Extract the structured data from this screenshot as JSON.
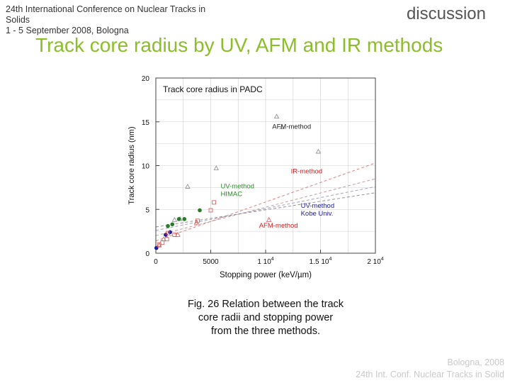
{
  "header": {
    "conference_lines": [
      "24th International Conference on Nuclear Tracks in",
      "Solids",
      "1 - 5 September 2008, Bologna"
    ],
    "section": "discussion",
    "title": "Track core radius by UV, AFM and IR methods"
  },
  "chart_data": {
    "type": "scatter",
    "title": "Track core radius in PADC",
    "xlabel": "Stopping power (keV/µm)",
    "ylabel": "Track core radius (nm)",
    "xlim": [
      0,
      20000
    ],
    "ylim": [
      0,
      20
    ],
    "x_ticks": [
      {
        "value": 0,
        "label": "0"
      },
      {
        "value": 5000,
        "label": "5000"
      },
      {
        "value": 10000,
        "label": "1 10",
        "exp": "4"
      },
      {
        "value": 15000,
        "label": "1.5 10",
        "exp": "4"
      },
      {
        "value": 20000,
        "label": "2 10",
        "exp": "4"
      }
    ],
    "y_ticks": [
      0,
      5,
      10,
      15,
      20
    ],
    "grid": true,
    "annotations": [
      {
        "text": "AFM-method",
        "x": 10600,
        "y": 14.2,
        "color": "#222222"
      },
      {
        "text": "IR-method",
        "x": 12300,
        "y": 9.1,
        "color": "#cc2222"
      },
      {
        "text": "UV-method",
        "x": 5900,
        "y": 7.4,
        "color": "#2a8a2a"
      },
      {
        "text": "HIMAC",
        "x": 5900,
        "y": 6.5,
        "color": "#2a8a2a"
      },
      {
        "text": "UV-method",
        "x": 13200,
        "y": 5.2,
        "color": "#1a1aa0"
      },
      {
        "text": "Kobe Univ.",
        "x": 13200,
        "y": 4.3,
        "color": "#1a1aa0"
      },
      {
        "text": "AFM-method",
        "x": 9400,
        "y": 2.9,
        "color": "#cc2222"
      }
    ],
    "series": [
      {
        "marker": "triangle",
        "color": "#888888",
        "points": [
          [
            11000,
            15.6
          ],
          [
            11500,
            14.4
          ],
          [
            14800,
            11.6
          ],
          [
            5500,
            9.7
          ],
          [
            2900,
            7.6
          ],
          [
            1700,
            3.8
          ],
          [
            2200,
            3.9
          ],
          [
            700,
            1.6
          ]
        ]
      },
      {
        "marker": "dot",
        "color": "#2a7a2a",
        "points": [
          [
            1100,
            3.1
          ],
          [
            1500,
            3.3
          ],
          [
            2100,
            3.9
          ],
          [
            2600,
            3.9
          ],
          [
            4000,
            4.9
          ]
        ]
      },
      {
        "marker": "dot",
        "color": "#1a1aa0",
        "points": [
          [
            50,
            0.6
          ],
          [
            900,
            2.1
          ],
          [
            1300,
            2.4
          ]
        ]
      },
      {
        "marker": "square",
        "color": "#d05050",
        "points": [
          [
            5300,
            5.8
          ],
          [
            5000,
            4.9
          ],
          [
            3800,
            3.7
          ],
          [
            1700,
            2.1
          ],
          [
            1100,
            2.3
          ],
          [
            600,
            1.2
          ],
          [
            300,
            1.0
          ],
          [
            1000,
            1.6
          ]
        ]
      },
      {
        "marker": "triangle",
        "color": "#d05050",
        "points": [
          [
            10300,
            3.8
          ],
          [
            3700,
            3.5
          ],
          [
            2000,
            2.1
          ],
          [
            300,
            0.9
          ]
        ]
      }
    ],
    "fit_lines": [
      {
        "color": "#e08080",
        "points": [
          [
            0,
            1.4
          ],
          [
            20000,
            10.3
          ]
        ]
      },
      {
        "color": "#c0a0a0",
        "points": [
          [
            0,
            2.0
          ],
          [
            20000,
            8.5
          ]
        ]
      },
      {
        "color": "#a0a0c0",
        "points": [
          [
            0,
            2.6
          ],
          [
            20000,
            7.6
          ]
        ]
      },
      {
        "color": "#909090",
        "points": [
          [
            0,
            3.0
          ],
          [
            20000,
            6.9
          ]
        ]
      }
    ]
  },
  "caption_lines": [
    "Fig. 26 Relation between the track",
    "core radii and stopping power",
    "from the three methods."
  ],
  "footer_lines": [
    "Bologna, 2008",
    "24th Int. Conf. Nuclear Tracks in Solid"
  ]
}
